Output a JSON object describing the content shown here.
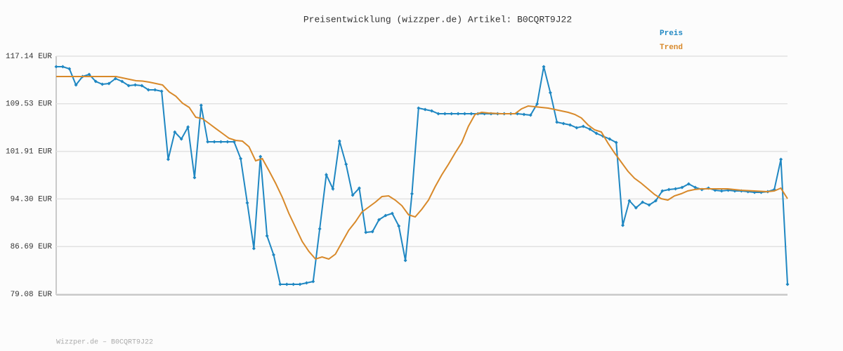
{
  "chart_data": {
    "type": "line",
    "title": "Preisentwicklung (wizzper.de) Artikel: B0CQRT9J22",
    "footer": "Wizzper.de – B0CQRT9J22",
    "ylim": [
      79.08,
      117.14
    ],
    "yticks": [
      {
        "value": 79.08,
        "label": "79.08 EUR"
      },
      {
        "value": 86.69,
        "label": "86.69 EUR"
      },
      {
        "value": 94.3,
        "label": "94.30 EUR"
      },
      {
        "value": 101.91,
        "label": "101.91 EUR"
      },
      {
        "value": 109.53,
        "label": "109.53 EUR"
      },
      {
        "value": 117.14,
        "label": "117.14 EUR"
      }
    ],
    "grid": true,
    "series": [
      {
        "name": "Preis",
        "color": "#1f87c2",
        "markers": true,
        "values": [
          115.46,
          115.46,
          115.12,
          112.54,
          113.88,
          114.22,
          113.1,
          112.65,
          112.76,
          113.55,
          113.1,
          112.42,
          112.54,
          112.42,
          111.75,
          111.75,
          111.53,
          100.64,
          105.0,
          103.89,
          105.8,
          97.72,
          109.28,
          103.44,
          103.44,
          103.44,
          103.44,
          103.44,
          100.75,
          93.68,
          86.38,
          101.09,
          88.4,
          85.37,
          80.65,
          80.65,
          80.65,
          80.65,
          80.88,
          81.1,
          89.52,
          98.17,
          95.92,
          103.56,
          99.85,
          94.91,
          96.03,
          88.96,
          89.07,
          90.98,
          91.65,
          91.99,
          89.97,
          84.47,
          95.14,
          108.83,
          108.61,
          108.38,
          107.93,
          107.93,
          107.93,
          107.93,
          107.93,
          107.93,
          107.93,
          107.93,
          107.93,
          107.93,
          107.93,
          107.93,
          107.93,
          107.82,
          107.71,
          109.51,
          115.46,
          111.3,
          106.59,
          106.36,
          106.14,
          105.69,
          105.91,
          105.46,
          104.79,
          104.34,
          103.89,
          103.33,
          90.08,
          94.01,
          92.89,
          93.79,
          93.34,
          94.01,
          95.58,
          95.81,
          95.92,
          96.15,
          96.71,
          96.15,
          95.81,
          96.03,
          95.7,
          95.58,
          95.7,
          95.58,
          95.58,
          95.47,
          95.36,
          95.36,
          95.47,
          95.81,
          100.64,
          80.65
        ]
      },
      {
        "name": "Trend",
        "color": "#d8892a",
        "markers": false,
        "values": [
          113.88,
          113.88,
          113.88,
          113.88,
          113.88,
          113.88,
          113.88,
          113.88,
          113.88,
          113.88,
          113.66,
          113.43,
          113.21,
          113.15,
          112.99,
          112.76,
          112.54,
          111.41,
          110.74,
          109.62,
          108.94,
          107.37,
          107.15,
          106.36,
          105.57,
          104.79,
          104.0,
          103.67,
          103.56,
          102.66,
          100.41,
          100.75,
          98.84,
          96.82,
          94.57,
          91.99,
          89.75,
          87.5,
          85.93,
          84.69,
          85.03,
          84.69,
          85.48,
          87.39,
          89.3,
          90.64,
          92.22,
          93.0,
          93.79,
          94.69,
          94.8,
          94.12,
          93.23,
          91.77,
          91.43,
          92.66,
          94.12,
          96.26,
          98.17,
          99.85,
          101.65,
          103.33,
          105.91,
          107.82,
          108.16,
          108.05,
          107.99,
          107.93,
          107.93,
          107.93,
          108.72,
          109.17,
          109.06,
          108.94,
          108.83,
          108.61,
          108.38,
          108.16,
          107.82,
          107.26,
          106.14,
          105.35,
          105.01,
          103.22,
          101.65,
          100.19,
          98.73,
          97.61,
          96.82,
          95.92,
          95.02,
          94.35,
          94.12,
          94.8,
          95.14,
          95.58,
          95.81,
          95.92,
          95.92,
          95.92,
          95.92,
          95.92,
          95.81,
          95.7,
          95.64,
          95.58,
          95.53,
          95.47,
          95.58,
          96.03,
          94.35
        ]
      }
    ]
  }
}
